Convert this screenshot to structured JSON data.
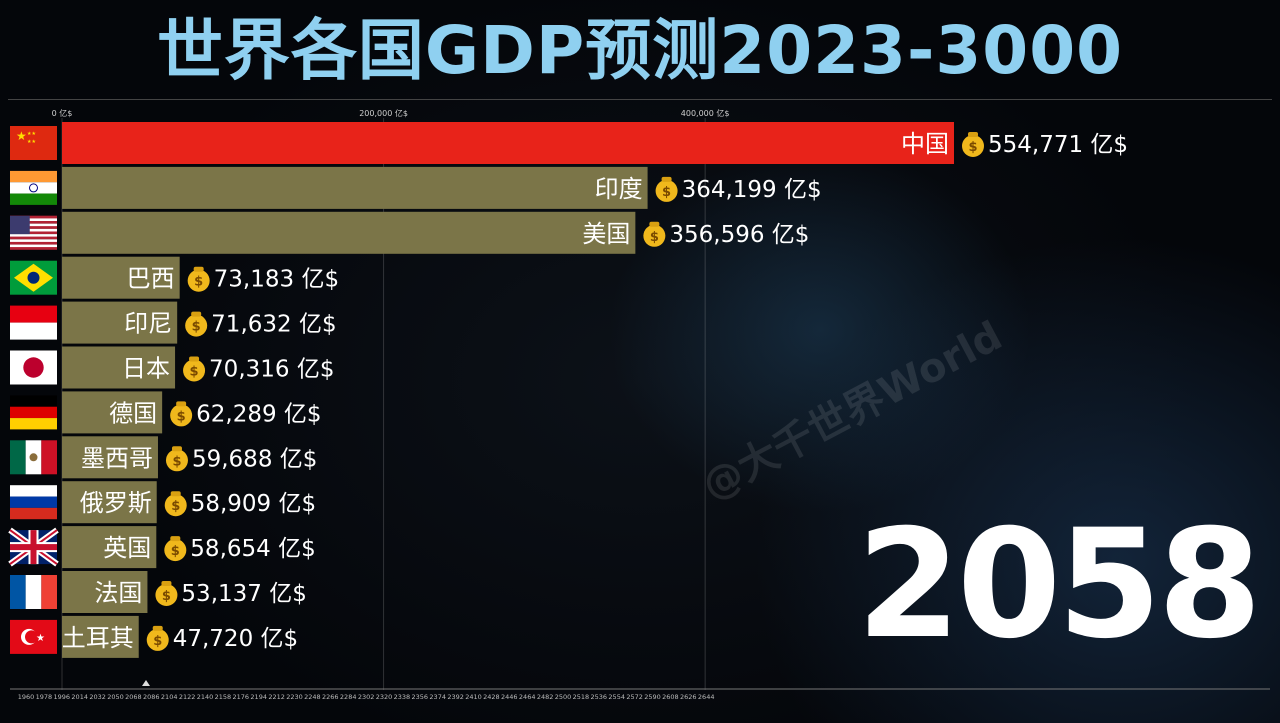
{
  "title": "世界各国GDP预测2023-3000",
  "current_year": "2058",
  "watermark": "@大千世界World",
  "chart_data": {
    "type": "bar",
    "orientation": "horizontal",
    "title": "世界各国GDP预测2023-3000",
    "unit": "亿$",
    "xlim": [
      0,
      550000
    ],
    "x_ticks": [
      "0 亿$",
      "200,000 亿$",
      "400,000 亿$"
    ],
    "x_tick_values": [
      0,
      200000,
      400000
    ],
    "categories": [
      "中国",
      "印度",
      "美国",
      "巴西",
      "印尼",
      "日本",
      "德国",
      "墨西哥",
      "俄罗斯",
      "英国",
      "法国",
      "土耳其"
    ],
    "values": [
      554771,
      364199,
      356596,
      73183,
      71632,
      70316,
      62289,
      59688,
      58909,
      58654,
      53137,
      47720
    ],
    "value_labels": [
      "554,771 亿$",
      "364,199 亿$",
      "356,596 亿$",
      "73,183 亿$",
      "71,632 亿$",
      "70,316 亿$",
      "62,289 亿$",
      "59,688 亿$",
      "58,909 亿$",
      "58,654 亿$",
      "53,137 亿$",
      "47,720 亿$"
    ],
    "bar_colors": [
      "#e8231a",
      "#7b7548",
      "#7b7548",
      "#7b7548",
      "#7b7548",
      "#7b7548",
      "#7b7548",
      "#7b7548",
      "#7b7548",
      "#7b7548",
      "#7b7548",
      "#7b7548"
    ],
    "flags": [
      "china-flag-icon",
      "india-flag-icon",
      "usa-flag-icon",
      "brazil-flag-icon",
      "indonesia-flag-icon",
      "japan-flag-icon",
      "germany-flag-icon",
      "mexico-flag-icon",
      "russia-flag-icon",
      "uk-flag-icon",
      "france-flag-icon",
      "turkey-flag-icon"
    ],
    "timeline_labels": [
      "1960",
      "1978",
      "1996",
      "2014",
      "2032",
      "2050",
      "2068",
      "2086",
      "2104",
      "2122",
      "2140",
      "2158",
      "2176",
      "2194",
      "2212",
      "2230",
      "2248",
      "2266",
      "2284",
      "2302",
      "2320",
      "2338",
      "2356",
      "2374",
      "2392",
      "2410",
      "2428",
      "2446",
      "2464",
      "2482",
      "2500",
      "2518",
      "2536",
      "2554",
      "2572",
      "2590",
      "2608",
      "2626",
      "2644"
    ]
  }
}
